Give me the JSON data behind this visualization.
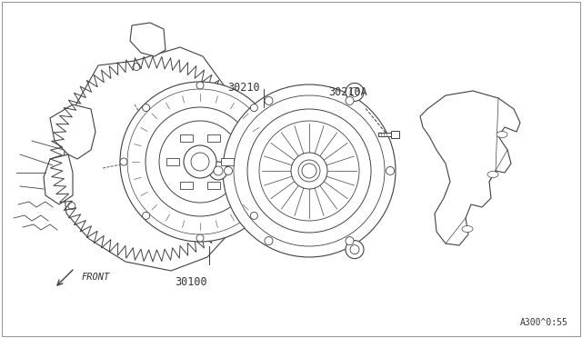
{
  "background_color": "#ffffff",
  "line_color": "#404040",
  "text_color": "#333333",
  "diagram_ref": "A300^0:55",
  "front_label": "FRONT",
  "figsize": [
    6.4,
    3.72
  ],
  "dpi": 100
}
